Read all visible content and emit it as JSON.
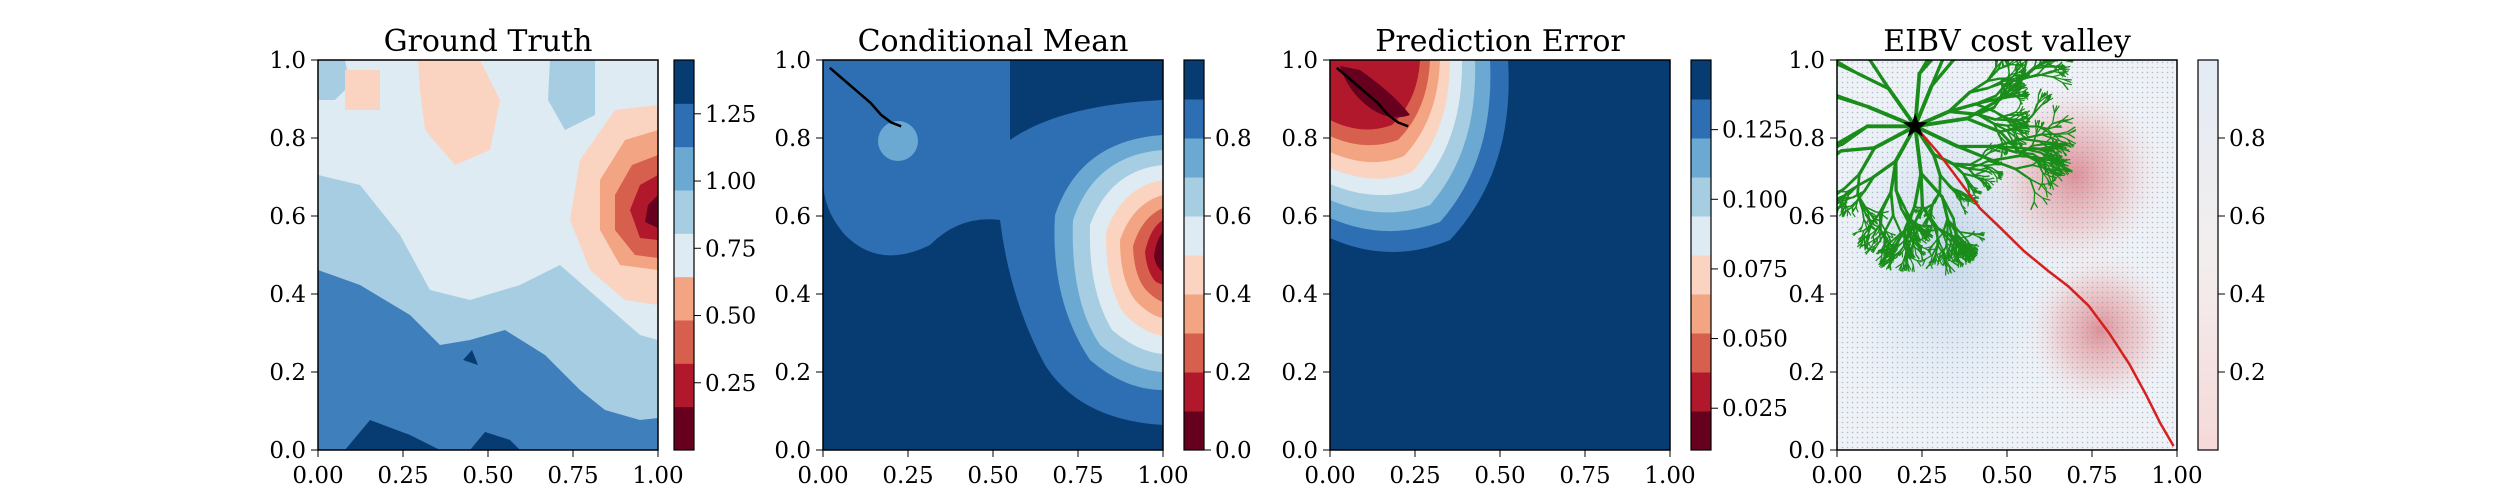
{
  "chart_data": [
    {
      "type": "heatmap",
      "title": "Ground Truth",
      "xlabel": "",
      "ylabel": "",
      "xlim": [
        0,
        1
      ],
      "ylim": [
        0,
        1
      ],
      "x_ticks": [
        "0.00",
        "0.25",
        "0.50",
        "0.75",
        "1.00"
      ],
      "y_ticks": [
        "0.0",
        "0.2",
        "0.4",
        "0.6",
        "0.8",
        "1.0"
      ],
      "colormap": "RdBu",
      "colorbar": {
        "range": [
          0.0,
          1.45
        ],
        "ticks": [
          0.25,
          0.5,
          0.75,
          1.0,
          1.25
        ],
        "tick_labels": [
          "0.25",
          "0.50",
          "0.75",
          "1.00",
          "1.25"
        ]
      }
    },
    {
      "type": "heatmap",
      "title": "Conditional Mean",
      "xlabel": "",
      "ylabel": "",
      "xlim": [
        0,
        1
      ],
      "ylim": [
        0,
        1
      ],
      "x_ticks": [
        "0.00",
        "0.25",
        "0.50",
        "0.75",
        "1.00"
      ],
      "y_ticks": [
        "0.0",
        "0.2",
        "0.4",
        "0.6",
        "0.8",
        "1.0"
      ],
      "colormap": "RdBu",
      "colorbar": {
        "range": [
          0.0,
          1.0
        ],
        "ticks": [
          0.0,
          0.2,
          0.4,
          0.6,
          0.8
        ],
        "tick_labels": [
          "0.0",
          "0.2",
          "0.4",
          "0.6",
          "0.8"
        ]
      },
      "path": [
        [
          0.02,
          0.98
        ],
        [
          0.06,
          0.95
        ],
        [
          0.1,
          0.92
        ],
        [
          0.14,
          0.89
        ],
        [
          0.17,
          0.86
        ],
        [
          0.2,
          0.84
        ],
        [
          0.23,
          0.83
        ]
      ]
    },
    {
      "type": "heatmap",
      "title": "Prediction Error",
      "xlabel": "",
      "ylabel": "",
      "xlim": [
        0,
        1
      ],
      "ylim": [
        0,
        1
      ],
      "x_ticks": [
        "0.00",
        "0.25",
        "0.50",
        "0.75",
        "1.00"
      ],
      "y_ticks": [
        "0.0",
        "0.2",
        "0.4",
        "0.6",
        "0.8",
        "1.0"
      ],
      "colormap": "RdBu",
      "colorbar": {
        "range": [
          0.01,
          0.15
        ],
        "ticks": [
          0.025,
          0.05,
          0.075,
          0.1,
          0.125
        ],
        "tick_labels": [
          "0.025",
          "0.050",
          "0.075",
          "0.100",
          "0.125"
        ]
      },
      "path": [
        [
          0.02,
          0.98
        ],
        [
          0.06,
          0.95
        ],
        [
          0.1,
          0.92
        ],
        [
          0.14,
          0.89
        ],
        [
          0.17,
          0.86
        ],
        [
          0.2,
          0.84
        ],
        [
          0.23,
          0.83
        ]
      ]
    },
    {
      "type": "heatmap",
      "title": "EIBV cost valley",
      "xlabel": "",
      "ylabel": "",
      "xlim": [
        0,
        1
      ],
      "ylim": [
        0,
        1
      ],
      "x_ticks": [
        "0.00",
        "0.25",
        "0.50",
        "0.75",
        "1.00"
      ],
      "y_ticks": [
        "0.0",
        "0.2",
        "0.4",
        "0.6",
        "0.8",
        "1.0"
      ],
      "colormap": "RdBu",
      "colorbar": {
        "range": [
          0.0,
          1.0
        ],
        "ticks": [
          0.2,
          0.4,
          0.6,
          0.8
        ],
        "tick_labels": [
          "0.2",
          "0.4",
          "0.6",
          "0.8"
        ]
      },
      "start_point": [
        0.23,
        0.83
      ],
      "tree_color": "#1a8c1a",
      "best_path_color": "#d62020",
      "best_path": [
        [
          0.23,
          0.83
        ],
        [
          0.3,
          0.76
        ],
        [
          0.36,
          0.69
        ],
        [
          0.42,
          0.62
        ],
        [
          0.48,
          0.57
        ],
        [
          0.55,
          0.51
        ],
        [
          0.62,
          0.46
        ],
        [
          0.68,
          0.42
        ],
        [
          0.74,
          0.37
        ],
        [
          0.8,
          0.3
        ],
        [
          0.86,
          0.22
        ],
        [
          0.91,
          0.14
        ],
        [
          0.95,
          0.07
        ],
        [
          0.99,
          0.01
        ]
      ]
    }
  ]
}
